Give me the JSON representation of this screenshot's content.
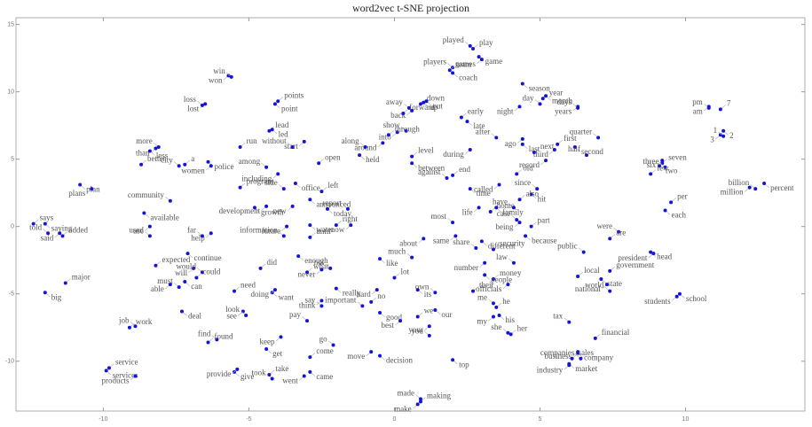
{
  "chart_data": {
    "type": "scatter",
    "title": "word2vec t-SNE projection",
    "color": "#1414d8",
    "xlim": [
      -13,
      14.1
    ],
    "ylim": [
      -13.7,
      15.5
    ],
    "xticks": [
      -10,
      -5,
      0,
      5,
      10
    ],
    "yticks": [
      15,
      10,
      5,
      0,
      -5,
      -10
    ],
    "grid": false,
    "points": [
      {
        "label": "played",
        "x": 2.6,
        "y": 13.4
      },
      {
        "label": "play",
        "x": 2.7,
        "y": 13.2
      },
      {
        "label": "game",
        "x": 2.9,
        "y": 12.6
      },
      {
        "label": "games",
        "x": 3.0,
        "y": 12.4
      },
      {
        "label": "players",
        "x": 2.0,
        "y": 11.8
      },
      {
        "label": "team",
        "x": 1.9,
        "y": 11.6
      },
      {
        "label": "coach",
        "x": 2.0,
        "y": 11.4
      },
      {
        "label": "won",
        "x": -5.7,
        "y": 11.2
      },
      {
        "label": "win",
        "x": -5.6,
        "y": 11.1
      },
      {
        "label": "points",
        "x": -4.0,
        "y": 9.3
      },
      {
        "label": "point",
        "x": -4.1,
        "y": 9.1
      },
      {
        "label": "lost",
        "x": -6.5,
        "y": 9.1
      },
      {
        "label": "loss",
        "x": -6.6,
        "y": 9.0
      },
      {
        "label": "down",
        "x": 0.9,
        "y": 9.1
      },
      {
        "label": "up",
        "x": 1.0,
        "y": 9.2
      },
      {
        "label": "back",
        "x": 0.6,
        "y": 8.6
      },
      {
        "label": "away",
        "x": 0.5,
        "y": 8.8
      },
      {
        "label": "forward",
        "x": 0.3,
        "y": 8.4
      },
      {
        "label": "out",
        "x": 1.1,
        "y": 9.3
      },
      {
        "label": "into",
        "x": 0.1,
        "y": 7.0
      },
      {
        "label": "show",
        "x": 0.4,
        "y": 7.1
      },
      {
        "label": "through",
        "x": -0.2,
        "y": 6.8
      },
      {
        "label": "season",
        "x": 4.4,
        "y": 10.6
      },
      {
        "label": "night",
        "x": 4.3,
        "y": 8.9
      },
      {
        "label": "day",
        "x": 5.0,
        "y": 9.1
      },
      {
        "label": "year",
        "x": 5.1,
        "y": 9.5
      },
      {
        "label": "month",
        "x": 5.2,
        "y": 9.7
      },
      {
        "label": "years",
        "x": 6.3,
        "y": 8.9
      },
      {
        "label": "days",
        "x": 6.3,
        "y": 8.8
      },
      {
        "label": "early",
        "x": 2.3,
        "y": 8.1
      },
      {
        "label": "late",
        "x": 2.5,
        "y": 7.8
      },
      {
        "label": "am",
        "x": 10.8,
        "y": 8.9
      },
      {
        "label": "pm",
        "x": 10.8,
        "y": 8.8
      },
      {
        "label": "7",
        "x": 11.2,
        "y": 8.7
      },
      {
        "label": "2",
        "x": 11.3,
        "y": 7.1
      },
      {
        "label": "3",
        "x": 11.2,
        "y": 6.8
      },
      {
        "label": "1",
        "x": 11.3,
        "y": 6.7
      },
      {
        "label": "lead",
        "x": -4.3,
        "y": 7.1
      },
      {
        "label": "led",
        "x": -4.2,
        "y": 7.2
      },
      {
        "label": "start",
        "x": -3.1,
        "y": 6.3
      },
      {
        "label": "without",
        "x": -3.5,
        "y": 5.9
      },
      {
        "label": "run",
        "x": -5.3,
        "y": 5.9
      },
      {
        "label": "police",
        "x": -6.4,
        "y": 4.8
      },
      {
        "label": "women",
        "x": -6.3,
        "y": 4.5
      },
      {
        "label": "city",
        "x": -7.4,
        "y": 4.5
      },
      {
        "label": "a",
        "x": -7.2,
        "y": 4.6
      },
      {
        "label": "less",
        "x": -8.4,
        "y": 5.6
      },
      {
        "label": "than",
        "x": -8.2,
        "y": 5.8
      },
      {
        "label": "more",
        "x": -8.1,
        "y": 5.9
      },
      {
        "label": "better",
        "x": -8.7,
        "y": 4.6
      },
      {
        "label": "plan",
        "x": -10.8,
        "y": 3.1
      },
      {
        "label": "plans",
        "x": -10.4,
        "y": 2.8
      },
      {
        "label": "community",
        "x": -7.7,
        "y": 1.9
      },
      {
        "label": "says",
        "x": -12.4,
        "y": 0.2
      },
      {
        "label": "saying",
        "x": -12.0,
        "y": 0.2
      },
      {
        "label": "said",
        "x": -11.5,
        "y": -0.5
      },
      {
        "label": "told",
        "x": -11.9,
        "y": -0.5
      },
      {
        "label": "added",
        "x": -11.4,
        "y": -0.7
      },
      {
        "label": "available",
        "x": -8.6,
        "y": 1.0
      },
      {
        "label": "use",
        "x": -8.4,
        "y": 0.0
      },
      {
        "label": "used",
        "x": -8.4,
        "y": -0.7
      },
      {
        "label": "expected",
        "x": -8.2,
        "y": -2.9
      },
      {
        "label": "continue",
        "x": -7.1,
        "y": -2.0
      },
      {
        "label": "will",
        "x": -6.9,
        "y": -3.1
      },
      {
        "label": "would",
        "x": -6.6,
        "y": -3.4
      },
      {
        "label": "could",
        "x": -6.8,
        "y": -3.8
      },
      {
        "label": "can",
        "x": -7.2,
        "y": -4.1
      },
      {
        "label": "able",
        "x": -7.7,
        "y": -4.3
      },
      {
        "label": "must",
        "x": -7.4,
        "y": -4.5
      },
      {
        "label": "major",
        "x": -11.3,
        "y": -4.2
      },
      {
        "label": "big",
        "x": -12.0,
        "y": -4.9
      },
      {
        "label": "help",
        "x": -6.3,
        "y": -0.5
      },
      {
        "label": "far",
        "x": -6.6,
        "y": -0.7
      },
      {
        "label": "program",
        "x": -5.3,
        "y": 2.9
      },
      {
        "label": "growth",
        "x": -4.8,
        "y": 1.4
      },
      {
        "label": "development",
        "x": -4.4,
        "y": 1.5
      },
      {
        "label": "quarter",
        "x": 7.0,
        "y": 6.6
      },
      {
        "label": "first",
        "x": 5.6,
        "y": 6.1
      },
      {
        "label": "second",
        "x": 6.2,
        "y": 5.9
      },
      {
        "label": "third",
        "x": 5.5,
        "y": 5.7
      },
      {
        "label": "half",
        "x": 6.6,
        "y": 5.3
      },
      {
        "label": "next",
        "x": 4.8,
        "y": 5.5
      },
      {
        "label": "last",
        "x": 4.4,
        "y": 6.1
      },
      {
        "label": "ago",
        "x": 4.4,
        "y": 6.5
      },
      {
        "label": "after",
        "x": 3.5,
        "y": 6.6
      },
      {
        "label": "seven",
        "x": 9.2,
        "y": 4.7
      },
      {
        "label": "two",
        "x": 9.1,
        "y": 4.5
      },
      {
        "label": "six",
        "x": 9.2,
        "y": 4.9
      },
      {
        "label": "three",
        "x": 9.3,
        "y": 4.4
      },
      {
        "label": "few",
        "x": 8.8,
        "y": 3.9
      },
      {
        "label": "percent",
        "x": 12.7,
        "y": 3.2
      },
      {
        "label": "million",
        "x": 12.2,
        "y": 2.9
      },
      {
        "label": "billion",
        "x": 12.4,
        "y": 2.8
      },
      {
        "label": "per",
        "x": 9.5,
        "y": 1.8
      },
      {
        "label": "each",
        "x": 9.3,
        "y": 1.2
      },
      {
        "label": "record",
        "x": 5.2,
        "y": 4.9
      },
      {
        "label": "since",
        "x": 4.9,
        "y": 2.8
      },
      {
        "label": "old",
        "x": 4.2,
        "y": 3.9
      },
      {
        "label": "hit",
        "x": 4.7,
        "y": 2.4
      },
      {
        "label": "called",
        "x": 3.6,
        "y": 3.1
      },
      {
        "label": "were",
        "x": 7.7,
        "y": -0.4
      },
      {
        "label": "are",
        "x": 7.4,
        "y": -0.9
      },
      {
        "label": "head",
        "x": 8.8,
        "y": -1.9
      },
      {
        "label": "president",
        "x": 8.9,
        "y": -2.0
      },
      {
        "label": "public",
        "x": 6.5,
        "y": -1.9
      },
      {
        "label": "government",
        "x": 7.4,
        "y": -3.3
      },
      {
        "label": "state",
        "x": 7.1,
        "y": -3.9
      },
      {
        "label": "national",
        "x": 7.3,
        "y": -4.3
      },
      {
        "label": "world",
        "x": 7.4,
        "y": -4.8
      },
      {
        "label": "local",
        "x": 6.3,
        "y": -3.7
      },
      {
        "label": "school",
        "x": 9.8,
        "y": -5.0
      },
      {
        "label": "students",
        "x": 9.7,
        "y": -5.2
      },
      {
        "label": "tax",
        "x": 6.0,
        "y": -7.1
      },
      {
        "label": "financial",
        "x": 6.9,
        "y": -8.3
      },
      {
        "label": "company",
        "x": 6.3,
        "y": -9.4
      },
      {
        "label": "business",
        "x": 6.3,
        "y": -9.3
      },
      {
        "label": "companies",
        "x": 6.4,
        "y": -9.8
      },
      {
        "label": "sales",
        "x": 6.1,
        "y": -9.8
      },
      {
        "label": "market",
        "x": 6.0,
        "y": -10.2
      },
      {
        "label": "industry",
        "x": 6.0,
        "y": -10.3
      },
      {
        "label": "me",
        "x": 3.4,
        "y": -5.7
      },
      {
        "label": "he",
        "x": 3.5,
        "y": -6.0
      },
      {
        "label": "his",
        "x": 3.6,
        "y": -6.6
      },
      {
        "label": "my",
        "x": 3.4,
        "y": -6.7
      },
      {
        "label": "she",
        "x": 3.9,
        "y": -7.9
      },
      {
        "label": "her",
        "x": 4.0,
        "y": -8.0
      },
      {
        "label": "our",
        "x": 1.4,
        "y": -6.2
      },
      {
        "label": "you",
        "x": 1.2,
        "y": -7.4
      },
      {
        "label": "your",
        "x": 1.2,
        "y": -8.1
      },
      {
        "label": "we",
        "x": 0.8,
        "y": -6.7
      },
      {
        "label": "top",
        "x": 2.0,
        "y": -9.9
      },
      {
        "label": "make",
        "x": 0.8,
        "y": -13.2
      },
      {
        "label": "made",
        "x": 0.9,
        "y": -12.8
      },
      {
        "label": "making",
        "x": 0.9,
        "y": -13.0
      },
      {
        "label": "decision",
        "x": -0.5,
        "y": -9.6
      },
      {
        "label": "move",
        "x": -0.8,
        "y": -9.3
      },
      {
        "label": "go",
        "x": -2.1,
        "y": -8.8
      },
      {
        "label": "come",
        "x": -2.9,
        "y": -9.7
      },
      {
        "label": "came",
        "x": -2.9,
        "y": -10.8
      },
      {
        "label": "went",
        "x": -3.1,
        "y": -11.1
      },
      {
        "label": "took",
        "x": -4.2,
        "y": -11.3
      },
      {
        "label": "take",
        "x": -4.3,
        "y": -11.0
      },
      {
        "label": "give",
        "x": -5.5,
        "y": -10.8
      },
      {
        "label": "provide",
        "x": -5.4,
        "y": -10.6
      },
      {
        "label": "find",
        "x": -6.1,
        "y": -8.4
      },
      {
        "label": "found",
        "x": -6.4,
        "y": -8.6
      },
      {
        "label": "get",
        "x": -4.4,
        "y": -9.1
      },
      {
        "label": "keep",
        "x": -3.9,
        "y": -8.2
      },
      {
        "label": "pay",
        "x": -3.0,
        "y": -7.0
      },
      {
        "label": "service",
        "x": -9.8,
        "y": -10.5
      },
      {
        "label": "services",
        "x": -9.9,
        "y": -10.7
      },
      {
        "label": "products",
        "x": -8.9,
        "y": -11.1
      },
      {
        "label": "job",
        "x": -8.9,
        "y": -7.4
      },
      {
        "label": "work",
        "x": -9.1,
        "y": -7.5
      },
      {
        "label": "deal",
        "x": -7.3,
        "y": -6.3
      },
      {
        "label": "see",
        "x": -5.2,
        "y": -6.3
      },
      {
        "label": "look",
        "x": -5.1,
        "y": -6.6
      },
      {
        "label": "need",
        "x": -5.5,
        "y": -4.8
      },
      {
        "label": "want",
        "x": -4.2,
        "y": -4.9
      },
      {
        "label": "doing",
        "x": -4.1,
        "y": -4.7
      },
      {
        "label": "information",
        "x": -3.8,
        "y": -0.7
      },
      {
        "label": "until",
        "x": -2.9,
        "y": -0.8
      },
      {
        "label": "office",
        "x": -3.4,
        "y": 3.2
      },
      {
        "label": "including",
        "x": -4.0,
        "y": 3.9
      },
      {
        "label": "among",
        "x": -4.4,
        "y": 4.4
      },
      {
        "label": "open",
        "x": -2.6,
        "y": 4.7
      },
      {
        "label": "held",
        "x": -1.2,
        "y": 5.3
      },
      {
        "label": "around",
        "x": -0.4,
        "y": 6.2
      },
      {
        "label": "along",
        "x": -1.0,
        "y": 5.9
      },
      {
        "label": "level",
        "x": 0.6,
        "y": 5.2
      },
      {
        "label": "between",
        "x": 0.6,
        "y": 4.7
      },
      {
        "label": "during",
        "x": 2.6,
        "y": 5.7
      },
      {
        "label": "against",
        "x": 1.8,
        "y": 3.6
      },
      {
        "label": "end",
        "x": 2.0,
        "y": 3.8
      },
      {
        "label": "time",
        "x": 2.6,
        "y": 2.8
      },
      {
        "label": "same",
        "x": 2.1,
        "y": -0.7
      },
      {
        "label": "share",
        "x": 2.8,
        "y": -1.6
      },
      {
        "label": "security",
        "x": 3.4,
        "y": -1.7
      },
      {
        "label": "different",
        "x": 3.0,
        "y": -1.1
      },
      {
        "label": "number",
        "x": 3.1,
        "y": -2.7
      },
      {
        "label": "law",
        "x": 4.1,
        "y": -2.7
      },
      {
        "label": "money",
        "x": 3.4,
        "y": -3.9
      },
      {
        "label": "people",
        "x": 3.1,
        "y": -3.6
      },
      {
        "label": "officials",
        "x": 3.9,
        "y": -4.3
      },
      {
        "label": "own",
        "x": 1.4,
        "y": -4.9
      },
      {
        "label": "their",
        "x": 2.7,
        "y": -4.8
      },
      {
        "label": "its",
        "x": 0.8,
        "y": -4.7
      },
      {
        "label": "hard",
        "x": -0.6,
        "y": -4.7
      },
      {
        "label": "important",
        "x": -1.1,
        "y": -5.9
      },
      {
        "label": "no",
        "x": -0.8,
        "y": -5.6
      },
      {
        "label": "good",
        "x": -0.5,
        "y": -6.4
      },
      {
        "label": "best",
        "x": 0.2,
        "y": -7.0
      },
      {
        "label": "much",
        "x": 0.6,
        "y": -2.3
      },
      {
        "label": "lot",
        "x": 0.0,
        "y": -3.8
      },
      {
        "label": "like",
        "x": -0.5,
        "y": -2.4
      },
      {
        "label": "about",
        "x": 1.0,
        "y": -0.9
      },
      {
        "label": "most",
        "x": 2.0,
        "y": 0.3
      },
      {
        "label": "home",
        "x": 3.3,
        "y": 1.1
      },
      {
        "label": "family",
        "x": 3.5,
        "y": 1.4
      },
      {
        "label": "life",
        "x": 2.9,
        "y": 1.4
      },
      {
        "label": "case",
        "x": 4.2,
        "y": 0.5
      },
      {
        "label": "part",
        "x": 4.7,
        "y": 0.0
      },
      {
        "label": "because",
        "x": 4.5,
        "y": -0.7
      },
      {
        "label": "being",
        "x": 4.3,
        "y": 0.3
      },
      {
        "label": "have",
        "x": 4.1,
        "y": 1.4
      },
      {
        "label": "also",
        "x": 4.3,
        "y": 2.0
      },
      {
        "label": "really",
        "x": -2.0,
        "y": -4.6
      },
      {
        "label": "think",
        "x": -2.5,
        "y": -5.5
      },
      {
        "label": "say",
        "x": -2.5,
        "y": -5.9
      },
      {
        "label": "what",
        "x": -3.0,
        "y": -3.4
      },
      {
        "label": "enough",
        "x": -3.3,
        "y": -2.2
      },
      {
        "label": "never",
        "x": -2.5,
        "y": -3.2
      },
      {
        "label": "not",
        "x": -2.2,
        "y": -3.1
      },
      {
        "label": "did",
        "x": -4.6,
        "y": -3.1
      },
      {
        "label": "today",
        "x": -2.3,
        "y": 1.3
      },
      {
        "label": "new",
        "x": -3.5,
        "y": 1.5
      },
      {
        "label": "side",
        "x": -3.8,
        "y": 2.8
      },
      {
        "label": "left",
        "x": -2.5,
        "y": 2.6
      },
      {
        "label": "announced",
        "x": -2.9,
        "y": 2.0
      },
      {
        "label": "future",
        "x": -3.7,
        "y": 0.0
      },
      {
        "label": "report",
        "x": -1.6,
        "y": 1.3
      },
      {
        "label": "right",
        "x": -2.0,
        "y": 0.1
      },
      {
        "label": "water",
        "x": -2.9,
        "y": 0.1
      },
      {
        "label": "now",
        "x": -1.5,
        "y": 0.1
      }
    ]
  }
}
